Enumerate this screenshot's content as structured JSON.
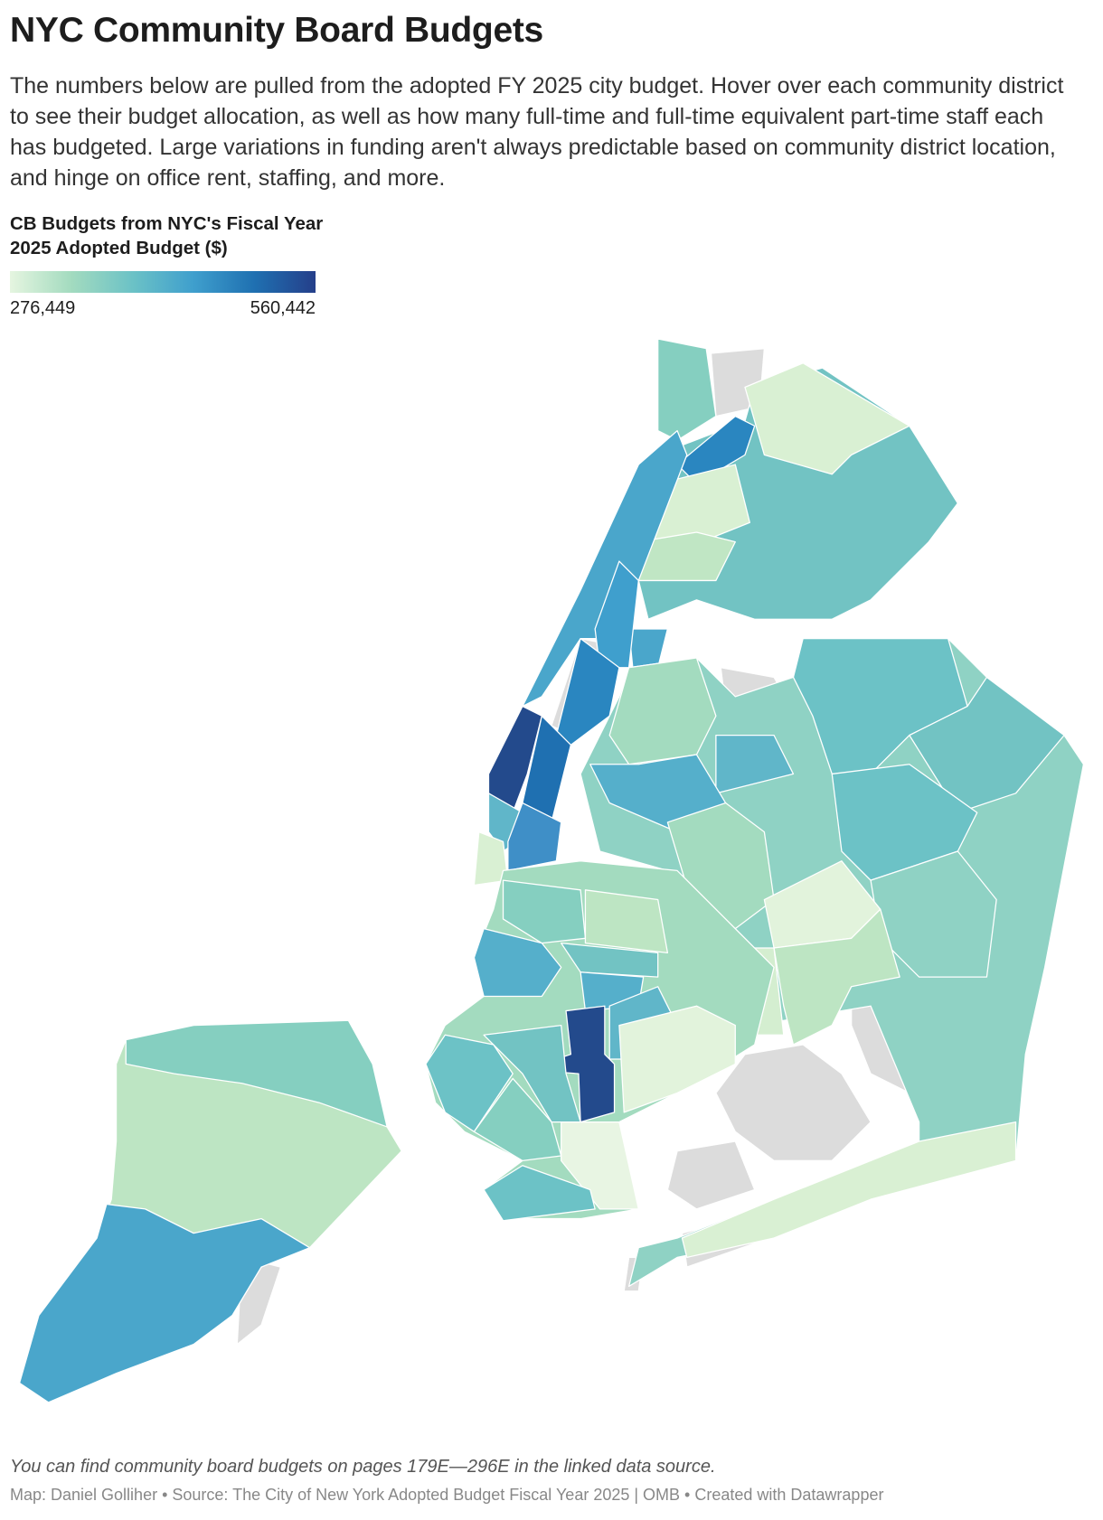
{
  "header": {
    "title": "NYC Community Board Budgets",
    "description": "The numbers below are pulled from the adopted FY 2025 city budget. Hover over each community district to see their budget allocation, as well as how many full-time and full-time equivalent part-time staff each has budgeted. Large variations in funding aren't always predictable based on community district location, and hinge on office rent, staffing, and more."
  },
  "legend": {
    "title": "CB Budgets from NYC's Fiscal Year 2025 Adopted Budget ($)",
    "min": {
      "value": 276449,
      "label": "276,449"
    },
    "max": {
      "value": 560442,
      "label": "560,442"
    },
    "colors": [
      "#e5f5e0",
      "#a3dbbf",
      "#6cc2c6",
      "#3f9fcd",
      "#1f70b1",
      "#253f8a"
    ]
  },
  "footer": {
    "note": "You can find community board budgets on pages 179E—296E in the linked data source.",
    "credit": "Map: Daniel Golliher • Source: The City of New York Adopted Budget Fiscal Year 2025 | OMB • Created with Datawrapper"
  }
}
